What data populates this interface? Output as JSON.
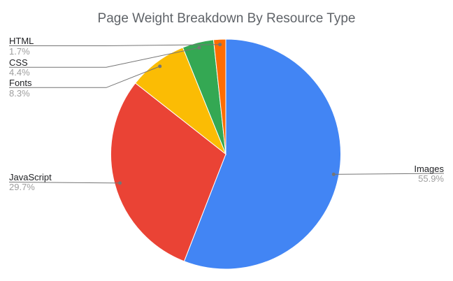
{
  "title": "Page Weight Breakdown By Resource Type",
  "chart_data": {
    "type": "pie",
    "title": "Page Weight Breakdown By Resource Type",
    "unit": "percent",
    "direction": "clockwise",
    "start_angle_deg": 0,
    "legend_position": "labeled-callouts",
    "slices": [
      {
        "label": "Images",
        "value": 55.9,
        "display": "55.9%",
        "color": "#4285F4"
      },
      {
        "label": "JavaScript",
        "value": 29.7,
        "display": "29.7%",
        "color": "#EA4335"
      },
      {
        "label": "Fonts",
        "value": 8.3,
        "display": "8.3%",
        "color": "#FBBC04"
      },
      {
        "label": "CSS",
        "value": 4.4,
        "display": "4.4%",
        "color": "#34A853"
      },
      {
        "label": "HTML",
        "value": 1.7,
        "display": "1.7%",
        "color": "#FF6D01"
      }
    ]
  },
  "style": {
    "title_color": "#5f6368",
    "label_color": "#202124",
    "percent_color": "#9e9e9e",
    "callout_color": "#757575",
    "slice_border_color": "#ffffff",
    "background": "#ffffff"
  }
}
